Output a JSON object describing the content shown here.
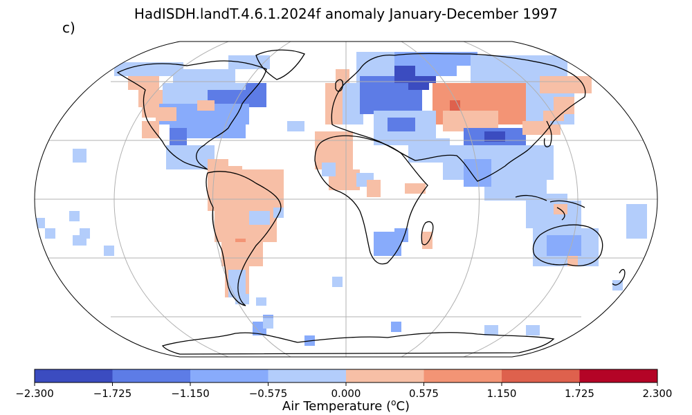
{
  "title": "HadISDH.landT.4.6.1.2024f anomaly January-December 1997",
  "panel_label": "c)",
  "colorbar": {
    "label_prefix": "Air Temperature (",
    "label_sup": "o",
    "label_suffix": "C)",
    "ticks": [
      "−2.300",
      "−1.725",
      "−1.150",
      "−0.575",
      "0.000",
      "0.575",
      "1.150",
      "1.725",
      "2.300"
    ],
    "colors": [
      "#3b4cc0",
      "#5d7ce6",
      "#88abfb",
      "#b3cdfb",
      "#f7bfa6",
      "#f39475",
      "#de614d",
      "#b40426"
    ]
  },
  "map": {
    "projection": "Robinson",
    "grid": true,
    "ocean_color": "#ffffff",
    "coastline_color": "#000000"
  },
  "regions": [
    {
      "name": "alaska-canada-nw",
      "color_index": 4,
      "cells": [
        [
          185,
          110,
          45,
          20
        ],
        [
          200,
          130,
          40,
          25
        ],
        [
          205,
          150,
          30,
          20
        ],
        [
          205,
          175,
          25,
          25
        ]
      ]
    },
    {
      "name": "canada-north",
      "color_index": 3,
      "cells": [
        [
          165,
          90,
          100,
          20
        ],
        [
          250,
          100,
          90,
          20
        ],
        [
          330,
          80,
          60,
          20
        ]
      ]
    },
    {
      "name": "canada-central",
      "color_index": 3,
      "cells": [
        [
          235,
          120,
          80,
          30
        ],
        [
          300,
          120,
          60,
          25
        ]
      ]
    },
    {
      "name": "canada-east",
      "color_index": 1,
      "cells": [
        [
          300,
          130,
          85,
          25
        ],
        [
          355,
          120,
          30,
          15
        ]
      ]
    },
    {
      "name": "usa",
      "color_index": 2,
      "cells": [
        [
          230,
          150,
          130,
          30
        ],
        [
          245,
          175,
          110,
          25
        ]
      ]
    },
    {
      "name": "usa-west",
      "color_index": 1,
      "cells": [
        [
          245,
          185,
          25,
          25
        ]
      ]
    },
    {
      "name": "usa-north",
      "color_index": 4,
      "cells": [
        [
          225,
          155,
          30,
          20
        ],
        [
          285,
          145,
          25,
          15
        ]
      ]
    },
    {
      "name": "mexico-central-america",
      "color_index": 3,
      "cells": [
        [
          240,
          210,
          70,
          35
        ],
        [
          290,
          230,
          25,
          15
        ]
      ]
    },
    {
      "name": "caribbean",
      "color_index": 4,
      "cells": [
        [
          300,
          230,
          30,
          15
        ],
        [
          330,
          240,
          20,
          15
        ]
      ]
    },
    {
      "name": "south-america-north",
      "color_index": 4,
      "cells": [
        [
          300,
          245,
          110,
          60
        ],
        [
          310,
          300,
          90,
          50
        ]
      ]
    },
    {
      "name": "south-america-warm",
      "color_index": 5,
      "cells": [
        [
          340,
          345,
          15,
          15
        ]
      ]
    },
    {
      "name": "south-america-south",
      "color_index": 4,
      "cells": [
        [
          320,
          350,
          60,
          35
        ],
        [
          325,
          380,
          35,
          50
        ]
      ]
    },
    {
      "name": "south-america-cold",
      "color_index": 3,
      "cells": [
        [
          330,
          390,
          25,
          40
        ],
        [
          340,
          425,
          20,
          15
        ],
        [
          370,
          430,
          15,
          12
        ]
      ]
    },
    {
      "name": "brazil-east-cool",
      "color_index": 3,
      "cells": [
        [
          360,
          305,
          30,
          20
        ]
      ]
    },
    {
      "name": "europe-west",
      "color_index": 4,
      "cells": [
        [
          470,
          120,
          30,
          60
        ],
        [
          485,
          100,
          20,
          25
        ]
      ]
    },
    {
      "name": "europe-west-cool",
      "color_index": 3,
      "cells": [
        [
          495,
          120,
          30,
          60
        ]
      ]
    },
    {
      "name": "scandinavia",
      "color_index": 3,
      "cells": [
        [
          515,
          75,
          60,
          45
        ]
      ]
    },
    {
      "name": "europe-central",
      "color_index": 1,
      "cells": [
        [
          520,
          110,
          90,
          55
        ]
      ]
    },
    {
      "name": "russia-west",
      "color_index": 0,
      "cells": [
        [
          570,
          90,
          60,
          30
        ],
        [
          590,
          110,
          30,
          20
        ]
      ]
    },
    {
      "name": "russia-north",
      "color_index": 2,
      "cells": [
        [
          570,
          75,
          120,
          20
        ],
        [
          600,
          95,
          60,
          15
        ]
      ]
    },
    {
      "name": "siberia-warm",
      "color_index": 5,
      "cells": [
        [
          625,
          120,
          140,
          60
        ],
        [
          640,
          140,
          40,
          25
        ]
      ]
    },
    {
      "name": "siberia-hot",
      "color_index": 6,
      "cells": [
        [
          650,
          145,
          15,
          15
        ]
      ]
    },
    {
      "name": "siberia-east",
      "color_index": 3,
      "cells": [
        [
          680,
          80,
          140,
          40
        ],
        [
          760,
          120,
          70,
          60
        ]
      ]
    },
    {
      "name": "east-siberia-warm",
      "color_index": 4,
      "cells": [
        [
          780,
          110,
          75,
          25
        ],
        [
          800,
          140,
          30,
          25
        ]
      ]
    },
    {
      "name": "central-asia-warm",
      "color_index": 4,
      "cells": [
        [
          640,
          160,
          80,
          30
        ]
      ]
    },
    {
      "name": "middle-east",
      "color_index": 3,
      "cells": [
        [
          540,
          160,
          90,
          50
        ],
        [
          590,
          200,
          60,
          35
        ]
      ]
    },
    {
      "name": "middle-east-cold",
      "color_index": 1,
      "cells": [
        [
          560,
          170,
          40,
          20
        ]
      ]
    },
    {
      "name": "china",
      "color_index": 1,
      "cells": [
        [
          670,
          185,
          90,
          40
        ]
      ]
    },
    {
      "name": "china-deep",
      "color_index": 0,
      "cells": [
        [
          700,
          190,
          30,
          15
        ]
      ]
    },
    {
      "name": "se-asia",
      "color_index": 3,
      "cells": [
        [
          640,
          210,
          160,
          50
        ],
        [
          700,
          250,
          90,
          40
        ]
      ]
    },
    {
      "name": "japan-korea",
      "color_index": 4,
      "cells": [
        [
          755,
          175,
          40,
          20
        ],
        [
          790,
          180,
          20,
          15
        ]
      ]
    },
    {
      "name": "japan-warm",
      "color_index": 4,
      "cells": [
        [
          785,
          160,
          30,
          15
        ]
      ]
    },
    {
      "name": "india",
      "color_index": 2,
      "cells": [
        [
          670,
          230,
          40,
          40
        ]
      ]
    },
    {
      "name": "africa-north",
      "color_index": 4,
      "cells": [
        [
          455,
          190,
          55,
          55
        ],
        [
          475,
          245,
          45,
          30
        ]
      ]
    },
    {
      "name": "africa-west-cool",
      "color_index": 3,
      "cells": [
        [
          465,
          235,
          20,
          20
        ],
        [
          515,
          250,
          25,
          20
        ]
      ]
    },
    {
      "name": "africa-east-warm",
      "color_index": 4,
      "cells": [
        [
          585,
          265,
          30,
          15
        ],
        [
          530,
          260,
          20,
          25
        ]
      ]
    },
    {
      "name": "south-africa",
      "color_index": 2,
      "cells": [
        [
          540,
          335,
          40,
          35
        ],
        [
          570,
          330,
          20,
          20
        ]
      ]
    },
    {
      "name": "madagascar",
      "color_index": 4,
      "cells": [
        [
          610,
          335,
          15,
          25
        ]
      ]
    },
    {
      "name": "indonesia",
      "color_index": 3,
      "cells": [
        [
          760,
          290,
          80,
          40
        ],
        [
          790,
          280,
          30,
          15
        ]
      ]
    },
    {
      "name": "indonesia-warm",
      "color_index": 4,
      "cells": [
        [
          800,
          295,
          20,
          15
        ]
      ]
    },
    {
      "name": "australia",
      "color_index": 3,
      "cells": [
        [
          770,
          330,
          95,
          55
        ]
      ]
    },
    {
      "name": "australia-core",
      "color_index": 2,
      "cells": [
        [
          790,
          340,
          50,
          30
        ]
      ]
    },
    {
      "name": "australia-south-warm",
      "color_index": 4,
      "cells": [
        [
          820,
          370,
          15,
          15
        ]
      ]
    },
    {
      "name": "nz-pacific",
      "color_index": 3,
      "cells": [
        [
          885,
          405,
          15,
          15
        ],
        [
          905,
          295,
          30,
          50
        ]
      ]
    },
    {
      "name": "pacific-islands",
      "color_index": 3,
      "cells": [
        [
          50,
          315,
          15,
          15
        ],
        [
          65,
          330,
          15,
          15
        ],
        [
          105,
          340,
          20,
          15
        ],
        [
          115,
          330,
          15,
          15
        ],
        [
          150,
          355,
          15,
          15
        ],
        [
          105,
          215,
          20,
          20
        ],
        [
          100,
          305,
          15,
          15
        ]
      ]
    },
    {
      "name": "atlantic-islands",
      "color_index": 3,
      "cells": [
        [
          415,
          175,
          25,
          15
        ],
        [
          480,
          400,
          15,
          15
        ],
        [
          395,
          300,
          15,
          15
        ]
      ]
    },
    {
      "name": "antarctica",
      "color_index": 2,
      "cells": [
        [
          365,
          465,
          20,
          20
        ],
        [
          440,
          485,
          15,
          15
        ],
        [
          565,
          465,
          15,
          15
        ],
        [
          380,
          455,
          15,
          15
        ]
      ]
    },
    {
      "name": "sub-antarctic",
      "color_index": 3,
      "cells": [
        [
          380,
          460,
          15,
          15
        ],
        [
          700,
          470,
          20,
          15
        ],
        [
          760,
          470,
          20,
          15
        ]
      ]
    }
  ]
}
